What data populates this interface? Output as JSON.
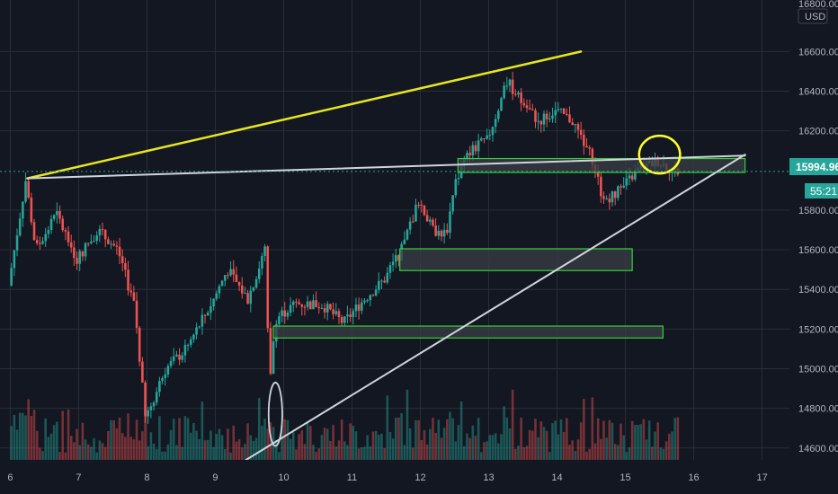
{
  "chart_data": {
    "type": "candlestick",
    "currency": "USD",
    "y_axis_top_label": "16800.00",
    "ylim": [
      14540,
      16860
    ],
    "y_ticks": [
      {
        "value": 16600,
        "label": "16600.00"
      },
      {
        "value": 16400,
        "label": "16400.00"
      },
      {
        "value": 16200,
        "label": "16200.00"
      },
      {
        "value": 15800,
        "label": "15800.00"
      },
      {
        "value": 15600,
        "label": "15600.00"
      },
      {
        "value": 15400,
        "label": "15400.00"
      },
      {
        "value": 15200,
        "label": "15200.00"
      },
      {
        "value": 15000,
        "label": "15000.00"
      },
      {
        "value": 14800,
        "label": "14800.00"
      },
      {
        "value": 14600,
        "label": "14600.00"
      }
    ],
    "xlim": [
      5.85,
      17.4
    ],
    "x_ticks": [
      {
        "value": 6,
        "label": "6"
      },
      {
        "value": 7,
        "label": "7"
      },
      {
        "value": 8,
        "label": "8"
      },
      {
        "value": 9,
        "label": "9"
      },
      {
        "value": 10,
        "label": "10"
      },
      {
        "value": 11,
        "label": "11"
      },
      {
        "value": 12,
        "label": "12"
      },
      {
        "value": 13,
        "label": "13"
      },
      {
        "value": 14,
        "label": "14"
      },
      {
        "value": 15,
        "label": "15"
      },
      {
        "value": 16,
        "label": "16"
      },
      {
        "value": 17,
        "label": "17"
      }
    ],
    "last_price": {
      "value": 15994.96,
      "label": "15994.96",
      "color": "#26a69a"
    },
    "countdown": {
      "label": "55:21",
      "color": "#26a69a"
    },
    "candles_anchor_path": [
      [
        6.0,
        15420
      ],
      [
        6.25,
        15950
      ],
      [
        6.4,
        15600
      ],
      [
        6.7,
        15780
      ],
      [
        7.0,
        15550
      ],
      [
        7.3,
        15700
      ],
      [
        7.6,
        15600
      ],
      [
        7.85,
        15300
      ],
      [
        8.0,
        14750
      ],
      [
        8.3,
        15000
      ],
      [
        8.6,
        15100
      ],
      [
        9.0,
        15350
      ],
      [
        9.2,
        15500
      ],
      [
        9.5,
        15350
      ],
      [
        9.75,
        15600
      ],
      [
        9.82,
        14900
      ],
      [
        9.9,
        15250
      ],
      [
        10.2,
        15330
      ],
      [
        10.6,
        15320
      ],
      [
        10.9,
        15230
      ],
      [
        11.2,
        15350
      ],
      [
        11.5,
        15450
      ],
      [
        11.75,
        15600
      ],
      [
        12.0,
        15850
      ],
      [
        12.2,
        15700
      ],
      [
        12.4,
        15680
      ],
      [
        12.55,
        15950
      ],
      [
        12.75,
        16100
      ],
      [
        13.0,
        16150
      ],
      [
        13.3,
        16450
      ],
      [
        13.5,
        16350
      ],
      [
        13.75,
        16250
      ],
      [
        14.0,
        16300
      ],
      [
        14.25,
        16250
      ],
      [
        14.55,
        16050
      ],
      [
        14.7,
        15850
      ],
      [
        14.95,
        15900
      ],
      [
        15.2,
        16000
      ],
      [
        15.5,
        16050
      ],
      [
        15.75,
        15995
      ]
    ],
    "volume_max": 14980,
    "colors": {
      "up": "#26a69a",
      "down": "#ef5350",
      "grid": "#2a2e39",
      "axis_text": "#b2b5be"
    },
    "annotations": {
      "yellow_trendline": {
        "color": "#e6e620",
        "from": [
          6.25,
          15960
        ],
        "to": [
          14.35,
          16600
        ]
      },
      "white_line_upper": {
        "color": "#d1d4dc",
        "from": [
          6.25,
          15960
        ],
        "to": [
          16.75,
          16075
        ]
      },
      "white_line_lower": {
        "color": "#d1d4dc",
        "from": [
          9.45,
          14540
        ],
        "to": [
          16.75,
          16080
        ]
      },
      "zones": [
        {
          "x": [
            12.55,
            16.75
          ],
          "y": [
            15990,
            16060
          ],
          "fill": "#3a3d45",
          "stroke": "#36d136"
        },
        {
          "x": [
            11.7,
            15.1
          ],
          "y": [
            15495,
            15605
          ],
          "fill": "#3a3d45",
          "stroke": "#36d136"
        },
        {
          "x": [
            9.85,
            15.55
          ],
          "y": [
            15155,
            15215
          ],
          "fill": "#3a3d45",
          "stroke": "#36d136"
        }
      ],
      "yellow_ellipse": {
        "color": "#ffff2a",
        "center": [
          15.5,
          16080
        ],
        "rx_days": 0.3,
        "ry_price": 95
      },
      "white_ellipse": {
        "color": "#d1d4dc",
        "center": [
          9.88,
          14770
        ],
        "rx_days": 0.1,
        "ry_price": 160
      }
    }
  }
}
